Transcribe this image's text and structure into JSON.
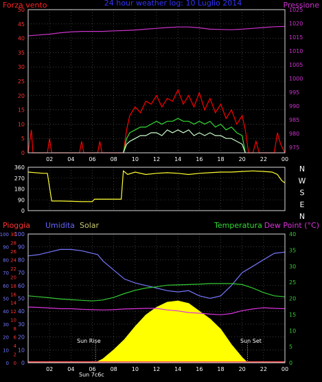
{
  "title": "24 hour weather log: 10 Luglio 2014",
  "chart_data": [
    {
      "type": "line",
      "panel": "wind-pressure",
      "left_label": "Forza vento",
      "right_label": "Pressione",
      "left_ticks": [
        0,
        5,
        10,
        15,
        20,
        25,
        30,
        35,
        40,
        45,
        50
      ],
      "right_ticks": [
        975,
        980,
        985,
        990,
        995,
        1000,
        1005,
        1010,
        1015,
        1020,
        1025
      ],
      "x_ticks": [
        "02",
        "04",
        "06",
        "08",
        "10",
        "12",
        "14",
        "16",
        "18",
        "20",
        "22",
        "00"
      ],
      "ylim_left": [
        0,
        50
      ],
      "ylim_right": [
        973,
        1025
      ],
      "xlim": [
        0,
        24
      ],
      "series": [
        {
          "name": "Pressione",
          "axis": "right",
          "color": "#cc33cc",
          "x": [
            0,
            1,
            2,
            3,
            4,
            5,
            6,
            7,
            8,
            9,
            10,
            11,
            12,
            13,
            14,
            15,
            16,
            17,
            18,
            19,
            20,
            21,
            22,
            23,
            24
          ],
          "values": [
            1015.5,
            1015.8,
            1016.1,
            1016.6,
            1016.9,
            1017.1,
            1017.1,
            1017.1,
            1017.3,
            1017.4,
            1017.6,
            1017.9,
            1018.2,
            1018.5,
            1018.7,
            1018.7,
            1018.4,
            1017.9,
            1017.8,
            1017.7,
            1017.9,
            1018.2,
            1018.5,
            1018.8,
            1018.9
          ]
        },
        {
          "name": "Raffica",
          "axis": "left",
          "color": "#ff0000",
          "x": [
            0,
            0.3,
            0.45,
            0.6,
            1.8,
            2.0,
            2.2,
            4.8,
            5.0,
            5.2,
            6.5,
            6.7,
            6.9,
            8.9,
            9.2,
            9.5,
            10,
            10.5,
            11,
            11.5,
            12,
            12.5,
            13,
            13.5,
            14,
            14.5,
            15,
            15.5,
            16,
            16.5,
            17,
            17.5,
            18,
            18.5,
            19,
            19.5,
            20,
            20.3,
            20.6,
            21,
            21.3,
            21.6,
            22,
            22.5,
            23,
            23.3,
            23.6,
            24
          ],
          "values": [
            0,
            8,
            0,
            0,
            0,
            5,
            0,
            0,
            4,
            0,
            0,
            4,
            0,
            0,
            8,
            13,
            16,
            14,
            18,
            17,
            20,
            16,
            19,
            18,
            22,
            17,
            20,
            16,
            21,
            15,
            19,
            14,
            17,
            12,
            15,
            10,
            13,
            8,
            0,
            0,
            4,
            0,
            0,
            0,
            0,
            7,
            3,
            0
          ]
        },
        {
          "name": "Vento medio",
          "axis": "left",
          "color": "#33dd33",
          "x": [
            8.9,
            9.2,
            9.5,
            10,
            10.5,
            11,
            11.5,
            12,
            12.5,
            13,
            13.5,
            14,
            14.5,
            15,
            15.5,
            16,
            16.5,
            17,
            17.5,
            18,
            18.5,
            19,
            19.5,
            20,
            20.3
          ],
          "values": [
            0,
            5,
            7,
            8,
            9,
            9,
            10,
            11,
            10,
            11,
            11,
            12,
            11,
            11,
            10,
            11,
            10,
            11,
            9,
            10,
            8,
            9,
            7,
            6,
            0
          ]
        },
        {
          "name": "Vento",
          "axis": "left",
          "color": "#ccffcc",
          "x": [
            8.9,
            9.2,
            9.5,
            10,
            10.5,
            11,
            11.5,
            12,
            12.5,
            13,
            13.5,
            14,
            14.5,
            15,
            15.5,
            16,
            16.5,
            17,
            17.5,
            18,
            18.5,
            19,
            19.5,
            20,
            20.3
          ],
          "values": [
            0,
            3,
            4,
            5,
            6,
            6,
            7,
            7,
            6,
            8,
            7,
            8,
            7,
            8,
            6,
            7,
            6,
            7,
            6,
            6,
            5,
            5,
            4,
            3,
            0
          ]
        }
      ]
    },
    {
      "type": "line",
      "panel": "wind-direction",
      "left_ticks": [
        0,
        90,
        180,
        270,
        360
      ],
      "compass": [
        "N",
        "W",
        "S",
        "E",
        "N"
      ],
      "ylim": [
        0,
        360
      ],
      "xlim": [
        0,
        24
      ],
      "series": [
        {
          "name": "Direzione vento",
          "color": "#ffff33",
          "x": [
            0,
            1.4,
            1.8,
            2.2,
            3,
            4,
            5,
            6,
            6.2,
            7,
            8,
            8.7,
            8.9,
            9.3,
            10,
            11,
            12,
            13,
            14,
            15,
            16,
            17,
            18,
            19,
            20,
            21,
            22,
            22.8,
            23.3,
            23.7,
            24
          ],
          "values": [
            320,
            310,
            310,
            80,
            80,
            78,
            75,
            75,
            95,
            95,
            95,
            95,
            330,
            300,
            320,
            300,
            310,
            315,
            310,
            300,
            310,
            315,
            320,
            320,
            325,
            330,
            325,
            320,
            300,
            250,
            230
          ]
        }
      ]
    },
    {
      "type": "line",
      "panel": "humidity-temperature-solar",
      "left_label_1": "Pioggia",
      "left_label_2": "Umidita",
      "left_label_3": "Solar",
      "right_label_1": "Temperatura",
      "right_label_2": "Dew Point (°C)",
      "rain_ticks": [
        0,
        10,
        20,
        30,
        40,
        50,
        60,
        70,
        80,
        90,
        100
      ],
      "hum_ticks": [
        0,
        2,
        4,
        6,
        8,
        10,
        12,
        14,
        16,
        18,
        20,
        22,
        24,
        26,
        28,
        30
      ],
      "humidity_ticks": [
        0,
        10,
        20,
        30,
        40,
        50,
        60,
        70,
        80,
        90,
        100
      ],
      "temp_ticks": [
        0,
        5,
        10,
        15,
        20,
        25,
        30,
        35,
        40
      ],
      "x_ticks": [
        "02",
        "04",
        "06",
        "08",
        "10",
        "12",
        "14",
        "16",
        "18",
        "20",
        "22",
        "00"
      ],
      "ylim_humidity": [
        0,
        100
      ],
      "ylim_temp": [
        0,
        40
      ],
      "xlim": [
        0,
        24
      ],
      "annotations": [
        "Sun Rise",
        "Sun Set",
        "Sun 7c6c"
      ],
      "series": [
        {
          "name": "Umidita",
          "color": "#7777ff",
          "x": [
            0,
            1,
            2,
            3,
            4,
            5,
            6,
            6.5,
            7,
            8,
            9,
            10,
            11,
            12,
            13,
            14,
            15,
            16,
            17,
            18,
            19,
            20,
            21,
            22,
            23,
            24
          ],
          "values": [
            83,
            84,
            86,
            88,
            88,
            87,
            85,
            84,
            79,
            72,
            65,
            62,
            60,
            58,
            56,
            55,
            56,
            52,
            50,
            52,
            60,
            70,
            75,
            80,
            85,
            86
          ]
        },
        {
          "name": "Temperatura",
          "color": "#33cc33",
          "x": [
            0,
            1,
            2,
            3,
            4,
            5,
            6,
            7,
            8,
            9,
            10,
            11,
            12,
            13,
            14,
            15,
            16,
            17,
            18,
            19,
            20,
            21,
            22,
            23,
            24
          ],
          "values": [
            20.8,
            20.5,
            20.2,
            19.8,
            19.6,
            19.4,
            19.2,
            19.5,
            20.3,
            21.5,
            22.5,
            23.2,
            23.6,
            24.1,
            24.2,
            24.3,
            24.4,
            24.6,
            24.6,
            24.6,
            24.3,
            23.2,
            21.8,
            20.8,
            20.5
          ]
        },
        {
          "name": "Dew Point",
          "color": "#dd33dd",
          "x": [
            0,
            1,
            2,
            3,
            4,
            5,
            6,
            7,
            8,
            9,
            10,
            11,
            12,
            13,
            14,
            15,
            16,
            17,
            18,
            19,
            20,
            21,
            22,
            23,
            24
          ],
          "values": [
            17.3,
            17.2,
            17.0,
            16.8,
            16.8,
            16.6,
            16.5,
            16.4,
            16.5,
            16.7,
            16.8,
            16.9,
            16.9,
            16.4,
            16.1,
            15.6,
            15.4,
            15.1,
            14.9,
            15.3,
            16.2,
            16.7,
            17.1,
            16.9,
            16.8
          ]
        },
        {
          "name": "Solar",
          "color": "#ffff00",
          "x": [
            6.3,
            7,
            8,
            9,
            10,
            11,
            12,
            13,
            14,
            15,
            16,
            17,
            18,
            19,
            20,
            20.5
          ],
          "values": [
            0,
            3,
            10,
            18,
            28,
            37,
            43,
            47,
            48,
            46,
            40,
            34,
            26,
            14,
            4,
            0
          ]
        }
      ]
    }
  ]
}
